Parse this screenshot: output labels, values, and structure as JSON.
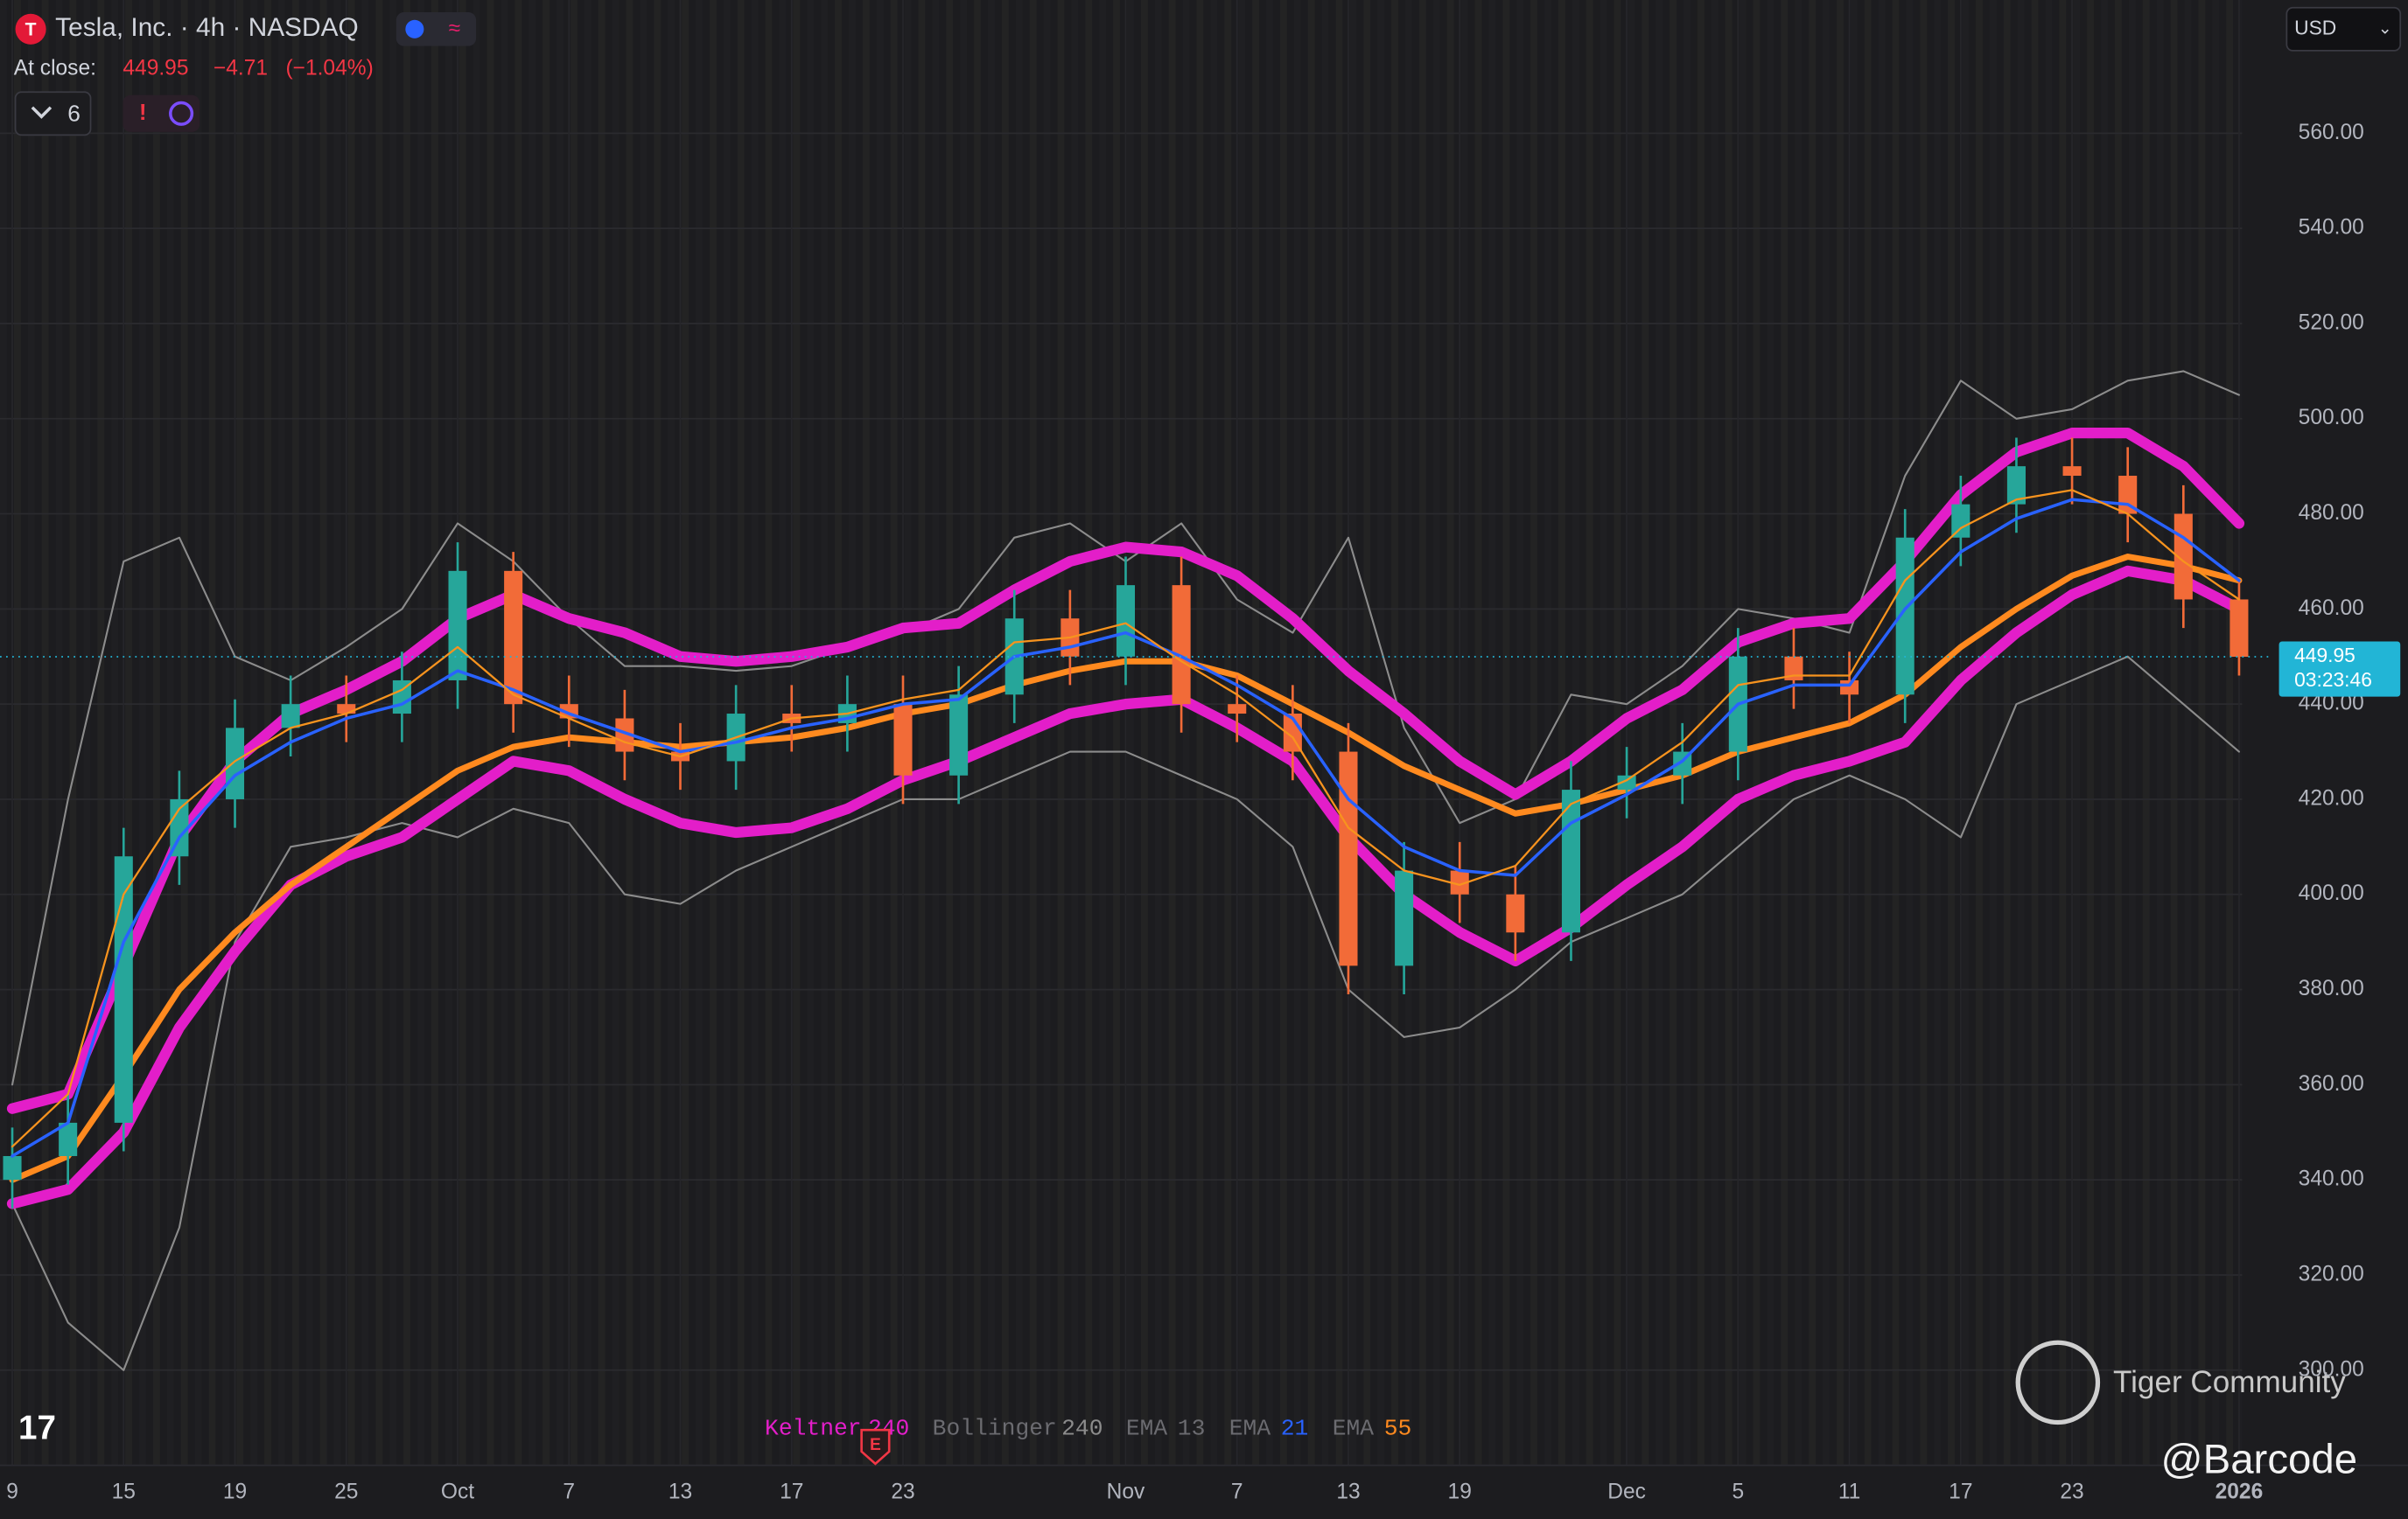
{
  "header": {
    "title": "Tesla, Inc. · 4h · NASDAQ",
    "at_close": "At close:",
    "close": 449.95,
    "change": {
      "value": -4.71,
      "label": "−4.71"
    },
    "change_pct": {
      "value": -1.04,
      "label": "(−1.04%)"
    },
    "indicator_count": 6,
    "currency": "USD"
  },
  "chart_data": {
    "type": "candlestick",
    "categories": [
      "9",
      null,
      "15",
      null,
      "19",
      null,
      "25",
      null,
      "Oct",
      null,
      "7",
      null,
      "13",
      null,
      "17",
      null,
      "23",
      null,
      null,
      null,
      "Nov",
      null,
      "7",
      null,
      "13",
      null,
      "19",
      null,
      null,
      "Dec",
      null,
      "5",
      null,
      "11",
      null,
      "17",
      null,
      "23",
      null,
      null,
      "2026"
    ],
    "ylim": [
      280,
      588
    ],
    "yticks": [
      {
        "value": 300,
        "label": "300.00"
      },
      {
        "value": 320,
        "label": "320.00"
      },
      {
        "value": 340,
        "label": "340.00"
      },
      {
        "value": 360,
        "label": "360.00"
      },
      {
        "value": 380,
        "label": "380.00"
      },
      {
        "value": 400,
        "label": "400.00"
      },
      {
        "value": 420,
        "label": "420.00"
      },
      {
        "value": 440,
        "label": "440.00"
      },
      {
        "value": 460,
        "label": "460.00"
      },
      {
        "value": 480,
        "label": "480.00"
      },
      {
        "value": 500,
        "label": "500.00"
      },
      {
        "value": 520,
        "label": "520.00"
      },
      {
        "value": 540,
        "label": "540.00"
      },
      {
        "value": 560,
        "label": "560.00"
      }
    ],
    "grid": true,
    "up_color": "#26a69a",
    "down_color": "#f26b38",
    "ohlc": {
      "open": [
        340,
        345,
        352,
        408,
        420,
        435,
        440,
        438,
        445,
        468,
        440,
        437,
        430,
        428,
        438,
        436,
        440,
        425,
        442,
        458,
        450,
        465,
        440,
        438,
        430,
        385,
        405,
        400,
        392,
        422,
        425,
        430,
        450,
        445,
        442,
        475,
        482,
        490,
        488,
        480,
        462
      ],
      "high": [
        351,
        358,
        414,
        426,
        441,
        446,
        446,
        451,
        474,
        472,
        446,
        443,
        436,
        444,
        444,
        446,
        446,
        448,
        464,
        464,
        471,
        471,
        446,
        444,
        436,
        411,
        411,
        406,
        428,
        431,
        436,
        456,
        456,
        451,
        481,
        488,
        496,
        496,
        494,
        486,
        466
      ],
      "low": [
        334,
        339,
        346,
        402,
        414,
        429,
        432,
        432,
        439,
        434,
        431,
        424,
        422,
        422,
        430,
        430,
        419,
        419,
        436,
        444,
        444,
        434,
        432,
        424,
        379,
        379,
        394,
        386,
        386,
        416,
        419,
        424,
        439,
        436,
        436,
        469,
        476,
        482,
        474,
        456,
        446
      ],
      "close": [
        345,
        352,
        408,
        420,
        435,
        440,
        438,
        445,
        468,
        440,
        437,
        430,
        428,
        438,
        436,
        440,
        425,
        442,
        458,
        450,
        465,
        440,
        438,
        430,
        385,
        405,
        400,
        392,
        422,
        425,
        430,
        450,
        445,
        442,
        475,
        482,
        490,
        488,
        480,
        462,
        449.95
      ]
    },
    "last_price": {
      "value": 449.95,
      "countdown": "03:23:46",
      "color": "#22b5d6"
    },
    "indicators": [
      {
        "name": "Keltner",
        "param": 240,
        "color": "#e31ec9",
        "name_color": "#e31ec9",
        "width": 7,
        "upper": [
          355,
          358,
          385,
          412,
          428,
          438,
          443,
          449,
          458,
          463,
          458,
          455,
          450,
          449,
          450,
          452,
          456,
          457,
          464,
          470,
          473,
          472,
          467,
          458,
          447,
          438,
          428,
          421,
          428,
          437,
          443,
          453,
          457,
          458,
          470,
          484,
          493,
          497,
          497,
          490,
          478
        ],
        "lower": [
          335,
          338,
          350,
          372,
          388,
          402,
          408,
          412,
          420,
          428,
          426,
          420,
          415,
          413,
          414,
          418,
          424,
          428,
          433,
          438,
          440,
          441,
          435,
          428,
          412,
          400,
          392,
          386,
          393,
          402,
          410,
          420,
          425,
          428,
          432,
          445,
          455,
          463,
          468,
          466,
          460
        ]
      },
      {
        "name": "Bollinger",
        "param": 240,
        "color": "#8c8c8c",
        "name_color": "#6b6b70",
        "width": 1.2,
        "upper": [
          360,
          420,
          470,
          475,
          450,
          445,
          452,
          460,
          478,
          470,
          458,
          448,
          448,
          447,
          448,
          452,
          455,
          460,
          475,
          478,
          470,
          478,
          462,
          455,
          475,
          435,
          415,
          420,
          442,
          440,
          448,
          460,
          458,
          455,
          488,
          508,
          500,
          502,
          508,
          510,
          505
        ],
        "lower": [
          335,
          310,
          300,
          330,
          390,
          410,
          412,
          415,
          412,
          418,
          415,
          400,
          398,
          405,
          410,
          415,
          420,
          420,
          425,
          430,
          430,
          425,
          420,
          410,
          380,
          370,
          372,
          380,
          390,
          395,
          400,
          410,
          420,
          425,
          420,
          412,
          440,
          445,
          450,
          440,
          430
        ]
      },
      {
        "name": "EMA",
        "param": 13,
        "color": "#f7931e",
        "name_color": "#6b6b70",
        "param_color": "#6b6b70",
        "width": 1.3,
        "values": [
          347,
          358,
          400,
          418,
          428,
          435,
          438,
          443,
          452,
          442,
          437,
          432,
          429,
          433,
          437,
          438,
          441,
          443,
          453,
          454,
          457,
          449,
          442,
          433,
          414,
          405,
          402,
          406,
          419,
          424,
          432,
          444,
          446,
          446,
          466,
          477,
          483,
          485,
          480,
          470,
          462
        ]
      },
      {
        "name": "EMA",
        "param": 21,
        "color": "#2962ff",
        "name_color": "#6b6b70",
        "width": 2,
        "values": [
          345,
          352,
          390,
          412,
          425,
          432,
          437,
          440,
          447,
          443,
          438,
          434,
          430,
          432,
          435,
          437,
          440,
          441,
          450,
          452,
          455,
          450,
          444,
          437,
          420,
          410,
          405,
          404,
          415,
          421,
          428,
          440,
          444,
          444,
          460,
          472,
          479,
          483,
          482,
          475,
          466
        ]
      },
      {
        "name": "EMA",
        "param": 55,
        "color": "#ff8a1f",
        "name_color": "#6b6b70",
        "width": 4,
        "values": [
          340,
          345,
          362,
          380,
          392,
          402,
          410,
          418,
          426,
          431,
          433,
          432,
          431,
          432,
          433,
          435,
          438,
          440,
          444,
          447,
          449,
          449,
          446,
          440,
          434,
          427,
          422,
          417,
          419,
          422,
          425,
          430,
          433,
          436,
          442,
          452,
          460,
          467,
          471,
          469,
          466
        ]
      }
    ],
    "event_marker": "E"
  },
  "watermark": {
    "brand": "Tiger Community",
    "handle": "@Barcode"
  }
}
